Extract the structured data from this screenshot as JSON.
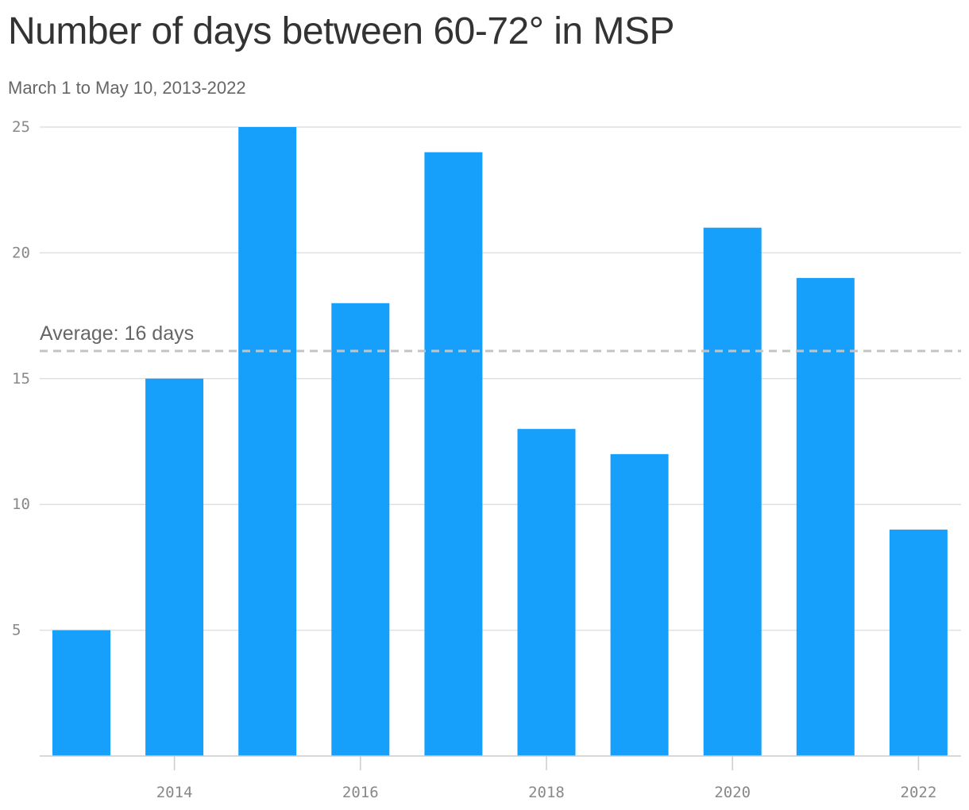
{
  "title": "Number of days between 60-72° in MSP",
  "subtitle": "March 1 to May 10, 2013-2022",
  "colors": {
    "bar": "#179FFC",
    "grid": "#e0e0e0",
    "average_line": "#c4c4c4"
  },
  "chart_data": {
    "type": "bar",
    "categories": [
      2013,
      2014,
      2015,
      2016,
      2017,
      2018,
      2019,
      2020,
      2021,
      2022
    ],
    "values": [
      5,
      15,
      25,
      18,
      24,
      13,
      12,
      21,
      19,
      9
    ],
    "x_ticks": [
      "2014",
      "2016",
      "2018",
      "2020",
      "2022"
    ],
    "y_ticks": [
      5,
      10,
      15,
      20,
      25
    ],
    "ylim": [
      0,
      25
    ],
    "grid": true,
    "average": {
      "value": 16.1,
      "label": "Average: 16 days"
    }
  }
}
